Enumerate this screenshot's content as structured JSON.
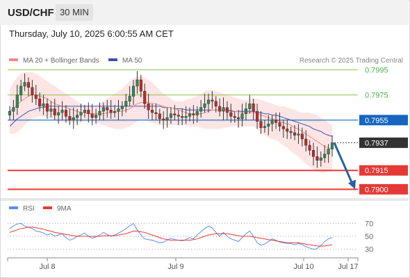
{
  "header": {
    "symbol": "USD/CHF",
    "timeframe": "30 MIN",
    "datetime": "Thursday, July 10, 2025 6:00:55 AM CET"
  },
  "colors": {
    "bull": "#2e8b57",
    "bear": "#c62828",
    "bollinger_fill": "#fde0e0",
    "ma20": "#f28b82",
    "ma50": "#3f51b5",
    "rsi": "#5b8def",
    "rsi_ma": "#e53935",
    "green_level": "#8bc34a",
    "blue_level": "#1565c0",
    "red_level": "#e53935",
    "arrow": "#2a5fa8",
    "last_price_tag": "#333333"
  },
  "chart_data": [
    {
      "type": "candlestick",
      "title": "",
      "legend": [
        {
          "label": "MA 20 + Bollinger Bands",
          "color": "#f28b82"
        },
        {
          "label": "MA 50",
          "color": "#3f51b5"
        }
      ],
      "legend_position": "top-left",
      "watermark": "Research © 2025 Trading Central",
      "x_tick_labels": [
        "Jul 8",
        "Jul 9",
        "Jul 10",
        "Jul 17"
      ],
      "ylim": [
        0.7893,
        0.7998
      ],
      "last_price": 0.7937,
      "levels": [
        {
          "value": 0.7995,
          "label": "0.7995",
          "style": "green-line"
        },
        {
          "value": 0.7975,
          "label": "0.7975",
          "style": "green-line"
        },
        {
          "value": 0.7955,
          "label": "0.7955",
          "style": "blue-line"
        },
        {
          "value": 0.7915,
          "label": "0.7915",
          "style": "red-line"
        },
        {
          "value": 0.79,
          "label": "0.7900",
          "style": "red-line"
        }
      ],
      "arrow": {
        "from": 0.7937,
        "to": 0.79,
        "direction": "down"
      },
      "close_series": [
        0.7962,
        0.7965,
        0.7975,
        0.7982,
        0.7985,
        0.7981,
        0.7975,
        0.7972,
        0.7966,
        0.7968,
        0.7962,
        0.7964,
        0.7959,
        0.7961,
        0.7963,
        0.7958,
        0.7955,
        0.7957,
        0.7959,
        0.7961,
        0.7963,
        0.796,
        0.7957,
        0.7959,
        0.7962,
        0.7965,
        0.7963,
        0.7961,
        0.7962,
        0.7964,
        0.7966,
        0.797,
        0.7974,
        0.7982,
        0.7987,
        0.7978,
        0.7968,
        0.7963,
        0.7961,
        0.796,
        0.7956,
        0.7955,
        0.7957,
        0.796,
        0.7959,
        0.7958,
        0.7957,
        0.7958,
        0.796,
        0.7959,
        0.7962,
        0.7965,
        0.7968,
        0.7971,
        0.797,
        0.7966,
        0.7962,
        0.7965,
        0.7961,
        0.7958,
        0.7957,
        0.7956,
        0.796,
        0.7964,
        0.7968,
        0.7962,
        0.7954,
        0.7949,
        0.795,
        0.7952,
        0.7955,
        0.7953,
        0.795,
        0.7948,
        0.7946,
        0.7945,
        0.7943,
        0.7944,
        0.794,
        0.7935,
        0.7931,
        0.7926,
        0.7923,
        0.7925,
        0.7928,
        0.7932,
        0.7937
      ],
      "ma20": [
        0.7962,
        0.7964,
        0.7967,
        0.797,
        0.7972,
        0.7974,
        0.7975,
        0.7975,
        0.7974,
        0.7973,
        0.7972,
        0.797,
        0.7968,
        0.7967,
        0.7966,
        0.7965,
        0.7964,
        0.7963,
        0.7962,
        0.7961,
        0.7961,
        0.796,
        0.796,
        0.796,
        0.796,
        0.796,
        0.7961,
        0.7961,
        0.7961,
        0.7962,
        0.7962,
        0.7963,
        0.7964,
        0.7966,
        0.7968,
        0.7969,
        0.7969,
        0.7969,
        0.7968,
        0.7968,
        0.7967,
        0.7966,
        0.7965,
        0.7965,
        0.7964,
        0.7963,
        0.7962,
        0.7961,
        0.796,
        0.796,
        0.796,
        0.796,
        0.7961,
        0.7962,
        0.7963,
        0.7963,
        0.7963,
        0.7963,
        0.7963,
        0.7963,
        0.7962,
        0.7962,
        0.7961,
        0.7961,
        0.7961,
        0.7961,
        0.796,
        0.7959,
        0.7958,
        0.7957,
        0.7956,
        0.7955,
        0.7954,
        0.7953,
        0.7952,
        0.7951,
        0.7949,
        0.7948,
        0.7946,
        0.7944,
        0.7942,
        0.794,
        0.7938,
        0.7936,
        0.7934,
        0.7933,
        0.7932
      ],
      "ma50": [
        0.795,
        0.7953,
        0.7956,
        0.7958,
        0.796,
        0.7962,
        0.7963,
        0.7964,
        0.7965,
        0.7965,
        0.7966,
        0.7966,
        0.7966,
        0.7966,
        0.7966,
        0.7966,
        0.7966,
        0.7966,
        0.7966,
        0.7966,
        0.7966,
        0.7966,
        0.7966,
        0.7966,
        0.7966,
        0.7966,
        0.7966,
        0.7966,
        0.7966,
        0.7966,
        0.7966,
        0.7966,
        0.7966,
        0.7966,
        0.7966,
        0.7966,
        0.7966,
        0.7966,
        0.7966,
        0.7966,
        0.7966,
        0.7965,
        0.7965,
        0.7965,
        0.7964,
        0.7964,
        0.7964,
        0.7963,
        0.7963,
        0.7963,
        0.7963,
        0.7963,
        0.7963,
        0.7963,
        0.7963,
        0.7963,
        0.7963,
        0.7963,
        0.7963,
        0.7962,
        0.7962,
        0.7962,
        0.7962,
        0.7962,
        0.7962,
        0.7962,
        0.7961,
        0.7961,
        0.796,
        0.796,
        0.7959,
        0.7959,
        0.7958,
        0.7957,
        0.7956,
        0.7955,
        0.7954,
        0.7953,
        0.7952,
        0.7951,
        0.795,
        0.7948,
        0.7947,
        0.7946,
        0.7944,
        0.7943,
        0.7942
      ],
      "bollinger_upper": [
        0.798,
        0.7985,
        0.7989,
        0.7992,
        0.7993,
        0.7993,
        0.7993,
        0.7992,
        0.799,
        0.7988,
        0.7986,
        0.7984,
        0.7982,
        0.798,
        0.7978,
        0.7976,
        0.7974,
        0.7972,
        0.797,
        0.7968,
        0.7967,
        0.7966,
        0.7966,
        0.7967,
        0.7968,
        0.797,
        0.7972,
        0.7974,
        0.7976,
        0.7978,
        0.798,
        0.7983,
        0.7986,
        0.7988,
        0.799,
        0.799,
        0.7989,
        0.7987,
        0.7985,
        0.7982,
        0.7979,
        0.7976,
        0.7974,
        0.7972,
        0.797,
        0.797,
        0.797,
        0.7971,
        0.7972,
        0.7973,
        0.7974,
        0.7976,
        0.7978,
        0.7979,
        0.7979,
        0.7978,
        0.7977,
        0.7976,
        0.7975,
        0.7974,
        0.7973,
        0.7972,
        0.7971,
        0.7971,
        0.7972,
        0.7972,
        0.7972,
        0.7971,
        0.797,
        0.7969,
        0.7968,
        0.7967,
        0.7966,
        0.7966,
        0.7965,
        0.7964,
        0.7963,
        0.7962,
        0.7961,
        0.7961,
        0.7961,
        0.796,
        0.7959,
        0.7957,
        0.7955,
        0.7953,
        0.7951
      ],
      "bollinger_lower": [
        0.7944,
        0.7944,
        0.7945,
        0.7948,
        0.7951,
        0.7954,
        0.7956,
        0.7957,
        0.7958,
        0.7958,
        0.7957,
        0.7956,
        0.7955,
        0.7954,
        0.7954,
        0.7953,
        0.7953,
        0.7953,
        0.7953,
        0.7953,
        0.7954,
        0.7954,
        0.7954,
        0.7953,
        0.7952,
        0.7951,
        0.795,
        0.7949,
        0.7948,
        0.7948,
        0.7948,
        0.7949,
        0.795,
        0.7952,
        0.7954,
        0.7955,
        0.7955,
        0.7954,
        0.7953,
        0.7952,
        0.7951,
        0.7951,
        0.7951,
        0.7951,
        0.7951,
        0.7951,
        0.7951,
        0.7951,
        0.795,
        0.795,
        0.795,
        0.7949,
        0.7948,
        0.7948,
        0.7948,
        0.7948,
        0.7948,
        0.7949,
        0.7949,
        0.795,
        0.795,
        0.795,
        0.795,
        0.795,
        0.795,
        0.795,
        0.7948,
        0.7945,
        0.7943,
        0.7941,
        0.794,
        0.7939,
        0.7937,
        0.7935,
        0.7933,
        0.793,
        0.7928,
        0.7926,
        0.7923,
        0.792,
        0.7918,
        0.7916,
        0.7914,
        0.7913,
        0.7913,
        0.7914,
        0.7915
      ]
    },
    {
      "type": "line",
      "title": "",
      "legend": [
        {
          "label": "RSI",
          "color": "#5b8def"
        },
        {
          "label": "9MA",
          "color": "#e53935"
        }
      ],
      "legend_position": "top-left",
      "ylim": [
        20,
        80
      ],
      "y_tick_labels": [
        "70",
        "50",
        "30"
      ],
      "reference_lines": [
        70,
        50,
        30
      ],
      "series": [
        {
          "name": "RSI",
          "values": [
            62,
            66,
            69,
            70,
            66,
            64,
            62,
            58,
            57,
            55,
            52,
            54,
            50,
            52,
            54,
            48,
            44,
            46,
            50,
            52,
            55,
            50,
            47,
            49,
            52,
            56,
            53,
            50,
            52,
            55,
            58,
            62,
            66,
            70,
            60,
            52,
            46,
            45,
            44,
            42,
            40,
            41,
            44,
            47,
            45,
            44,
            43,
            45,
            48,
            46,
            52,
            57,
            62,
            66,
            63,
            56,
            50,
            56,
            50,
            46,
            44,
            42,
            48,
            54,
            58,
            50,
            40,
            36,
            38,
            42,
            46,
            44,
            41,
            40,
            39,
            39,
            37,
            39,
            37,
            34,
            32,
            30,
            31,
            36,
            42,
            46,
            48
          ]
        },
        {
          "name": "9MA",
          "values": [
            56,
            58,
            60,
            62,
            63,
            64,
            64,
            63,
            62,
            61,
            59,
            58,
            56,
            55,
            54,
            53,
            52,
            51,
            50,
            50,
            50,
            50,
            50,
            50,
            50,
            51,
            51,
            51,
            51,
            52,
            53,
            54,
            56,
            58,
            58,
            57,
            56,
            54,
            52,
            50,
            48,
            46,
            45,
            44,
            44,
            44,
            44,
            44,
            44,
            45,
            46,
            48,
            50,
            52,
            53,
            54,
            54,
            54,
            54,
            53,
            52,
            51,
            50,
            50,
            50,
            49,
            48,
            47,
            46,
            45,
            44,
            43,
            42,
            41,
            40,
            40,
            40,
            40,
            39,
            38,
            37,
            36,
            35,
            35,
            35,
            36,
            37
          ]
        }
      ]
    }
  ]
}
